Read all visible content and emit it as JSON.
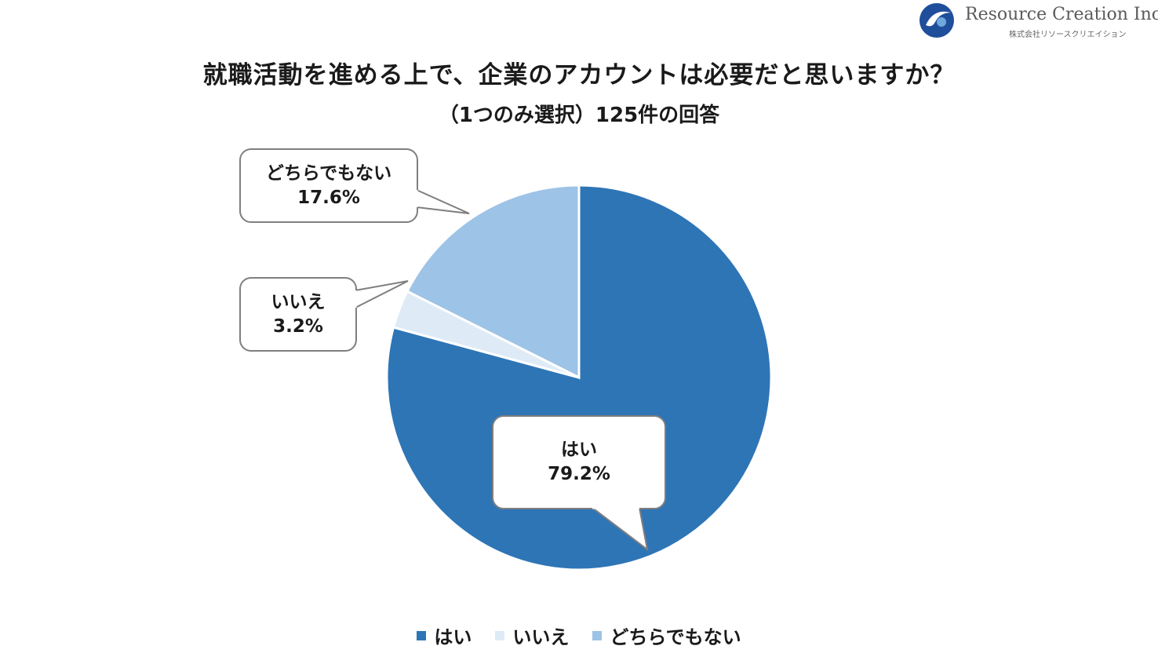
{
  "logo": {
    "name": "Resource Creation Inc.",
    "subname": "株式会社リソースクリエイション"
  },
  "chart_data": {
    "type": "pie",
    "title": "就職活動を進める上で、企業のアカウントは必要だと思いますか？",
    "subtitle": "（1つのみ選択）125件の回答",
    "categories": [
      "はい",
      "いいえ",
      "どちらでもない"
    ],
    "values": [
      79.2,
      3.2,
      17.6
    ],
    "value_labels": [
      "79.2%",
      "3.2%",
      "17.6%"
    ],
    "colors": [
      "#2e75b6",
      "#deebf7",
      "#9dc3e6"
    ],
    "legend_position": "bottom"
  }
}
